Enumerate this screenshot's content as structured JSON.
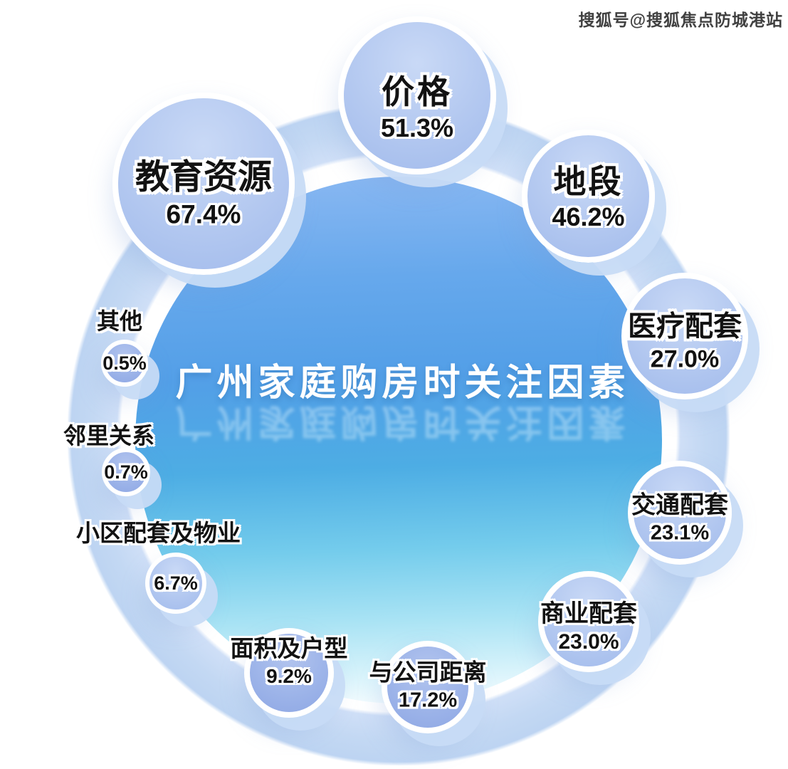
{
  "watermark": "搜狐号@搜狐焦点防城港站",
  "colors": {
    "central_top": "#8ab8f2",
    "central_mid": "#4dade4",
    "central_bottom": "#fbfeff",
    "ring": "#c3d8f3",
    "bubble_fill": "#b3c8f0",
    "bubble_fill_deep": "#9db4e9",
    "bubble_border": "#ffffff",
    "label_text": "#121212",
    "title_text": "#ffffff",
    "watermark_text": "#262626"
  },
  "chart_data": {
    "type": "bubble",
    "title": "广州家庭购房时关注因素",
    "unit": "%",
    "layout_hint": "bubbles arranged on a ring around central title circle, bubble size proportional to value",
    "series": [
      {
        "label": "教育资源",
        "value": 67.4,
        "value_label": "67.4%"
      },
      {
        "label": "价格",
        "value": 51.3,
        "value_label": "51.3%"
      },
      {
        "label": "地段",
        "value": 46.2,
        "value_label": "46.2%"
      },
      {
        "label": "医疗配套",
        "value": 27.0,
        "value_label": "27.0%"
      },
      {
        "label": "交通配套",
        "value": 23.1,
        "value_label": "23.1%"
      },
      {
        "label": "商业配套",
        "value": 23.0,
        "value_label": "23.0%"
      },
      {
        "label": "与公司距离",
        "value": 17.2,
        "value_label": "17.2%"
      },
      {
        "label": "面积及户型",
        "value": 9.2,
        "value_label": "9.2%"
      },
      {
        "label": "小区配套及物业",
        "value": 6.7,
        "value_label": "6.7%"
      },
      {
        "label": "邻里关系",
        "value": 0.7,
        "value_label": "0.7%"
      },
      {
        "label": "其他",
        "value": 0.5,
        "value_label": "0.5%"
      }
    ]
  }
}
